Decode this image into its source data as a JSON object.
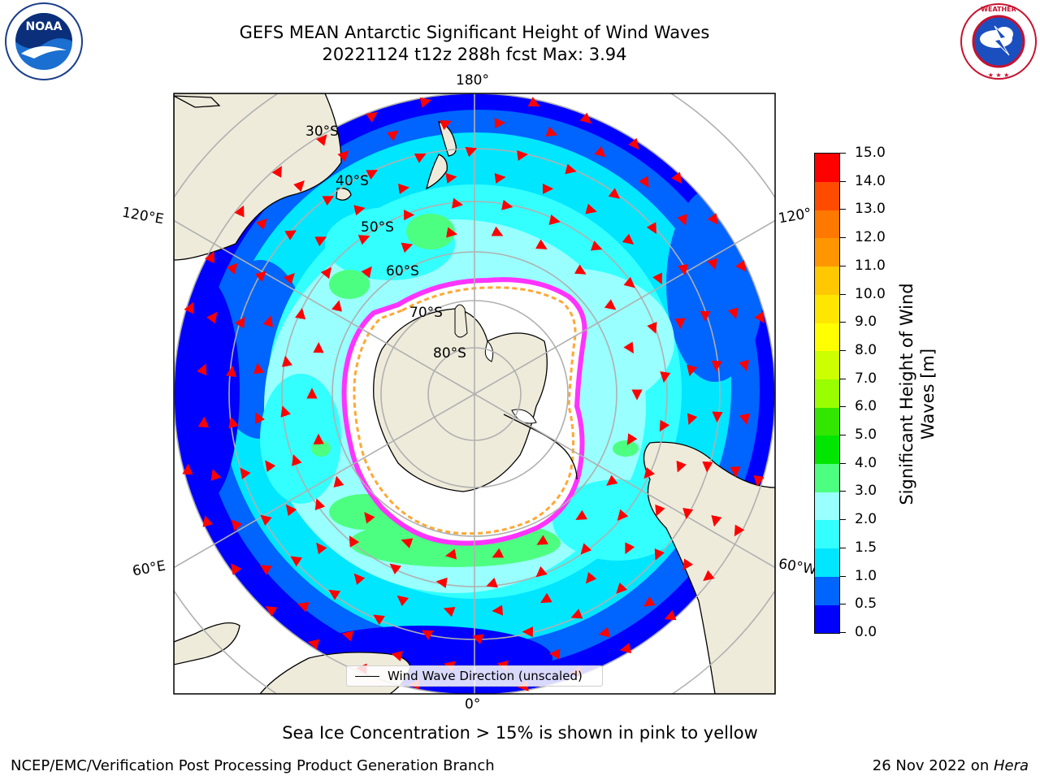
{
  "header": {
    "title_line1": "GEFS MEAN Antarctic Significant Height of Wind Waves",
    "title_line2": "20221124 t12z 288h fcst   Max: 3.94"
  },
  "logos": {
    "left": {
      "icon": "noaa-logo-icon",
      "text": "NOAA",
      "ring_text": "NATIONAL OCEANIC AND ATMOSPHERIC ADMINISTRATION · U.S. DEPARTMENT OF COMMERCE"
    },
    "right": {
      "icon": "nws-logo-icon",
      "ring_text": "NATIONAL WEATHER SERVICE"
    }
  },
  "map": {
    "projection": "south-polar-stereographic",
    "longitude_labels": {
      "top": "180°",
      "bottom": "0°",
      "upper_left": "120°E",
      "upper_right": "120°",
      "lower_left": "60°E",
      "lower_right": "60°W"
    },
    "latitude_labels": [
      "30°S",
      "40°S",
      "50°S",
      "60°S",
      "70°S",
      "80°S"
    ],
    "colors": {
      "land": "#efebdb",
      "ice_interior": "#ffffff",
      "sea_ice_edge": [
        "#ff33ff",
        "#ffa833",
        "#ffff66"
      ],
      "arrows": "#ff0000",
      "gridlines": "#b0b0b0"
    }
  },
  "colorbar": {
    "label": "Significant Height of Wind Waves [m]",
    "label_line1": "Significant Height of Wind",
    "label_line2": "Waves [m]",
    "ticks": [
      "0.0",
      "0.5",
      "1.0",
      "1.5",
      "2.0",
      "3.0",
      "4.0",
      "5.0",
      "6.0",
      "7.0",
      "8.0",
      "9.0",
      "10.0",
      "11.0",
      "12.0",
      "13.0",
      "14.0",
      "15.0"
    ],
    "colors": [
      "#0000ff",
      "#0064ff",
      "#00e6ff",
      "#33ffff",
      "#99ffff",
      "#4dff80",
      "#00e600",
      "#33e600",
      "#99ff00",
      "#ccff00",
      "#ffff00",
      "#ffe600",
      "#ffc800",
      "#ff9600",
      "#ff7800",
      "#ff4b00",
      "#ff0000"
    ]
  },
  "legend": {
    "label": "Wind Wave Direction (unscaled)"
  },
  "note": "Sea Ice Concentration > 15% is shown in pink to yellow",
  "footer": {
    "left": "NCEP/EMC/Verification Post Processing Product Generation Branch",
    "right_prefix": "26 Nov 2022 on ",
    "right_italic": "Hera"
  }
}
